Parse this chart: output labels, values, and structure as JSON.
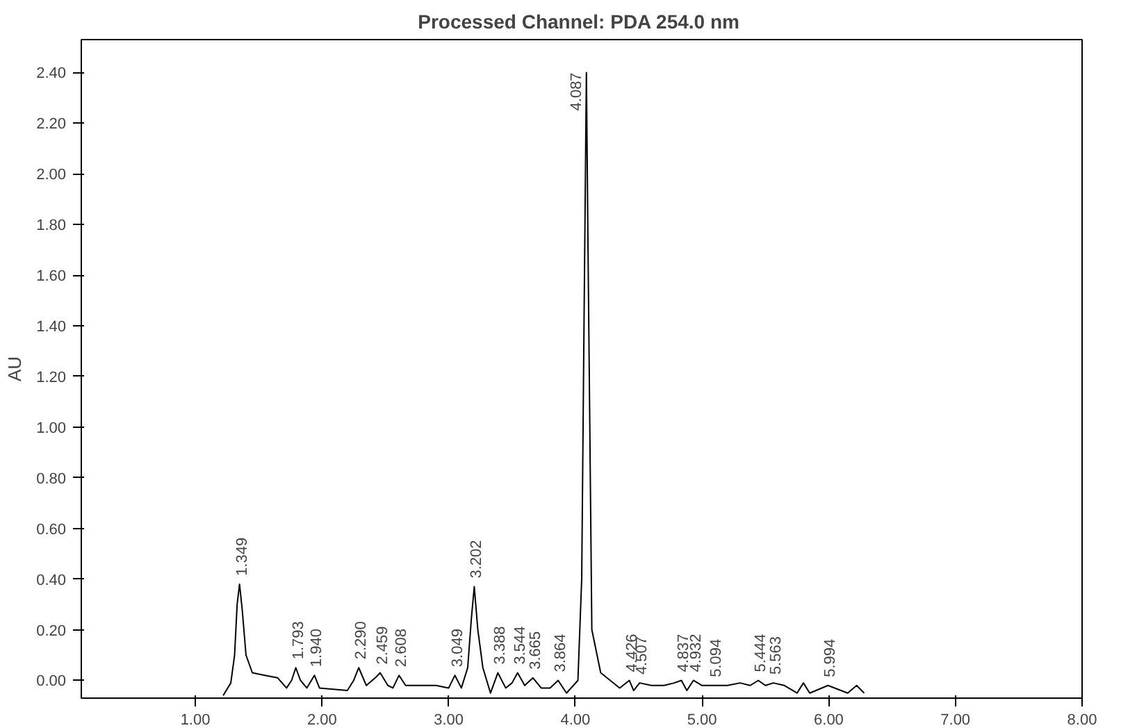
{
  "chart_data": {
    "type": "line",
    "title": "Processed Channel:  PDA 254.0 nm",
    "ylabel": "AU",
    "x": [
      1.22,
      1.28,
      1.31,
      1.33,
      1.349,
      1.37,
      1.4,
      1.45,
      1.55,
      1.65,
      1.72,
      1.76,
      1.793,
      1.83,
      1.88,
      1.94,
      1.98,
      2.2,
      2.25,
      2.29,
      2.35,
      2.42,
      2.459,
      2.52,
      2.56,
      2.608,
      2.66,
      2.9,
      3.0,
      3.049,
      3.1,
      3.15,
      3.18,
      3.202,
      3.23,
      3.27,
      3.33,
      3.388,
      3.45,
      3.5,
      3.544,
      3.6,
      3.665,
      3.73,
      3.8,
      3.864,
      3.93,
      4.02,
      4.05,
      4.07,
      4.087,
      4.1,
      4.13,
      4.2,
      4.35,
      4.426,
      4.46,
      4.507,
      4.6,
      4.7,
      4.78,
      4.837,
      4.88,
      4.932,
      5.0,
      5.094,
      5.2,
      5.3,
      5.38,
      5.444,
      5.5,
      5.563,
      5.65,
      5.75,
      5.8,
      5.85,
      5.994,
      6.15,
      6.22,
      6.28
    ],
    "series": [
      {
        "color": "#000000",
        "values": [
          -0.06,
          -0.01,
          0.1,
          0.3,
          0.38,
          0.28,
          0.1,
          0.03,
          0.02,
          0.01,
          -0.03,
          0.0,
          0.05,
          0.0,
          -0.03,
          0.02,
          -0.03,
          -0.04,
          0.0,
          0.05,
          -0.02,
          0.01,
          0.03,
          -0.02,
          -0.03,
          0.02,
          -0.02,
          -0.02,
          -0.03,
          0.02,
          -0.03,
          0.05,
          0.25,
          0.37,
          0.2,
          0.05,
          -0.05,
          0.03,
          -0.03,
          -0.01,
          0.03,
          -0.02,
          0.01,
          -0.03,
          -0.03,
          0.0,
          -0.05,
          0.0,
          0.4,
          1.5,
          2.4,
          1.7,
          0.2,
          0.03,
          -0.03,
          0.0,
          -0.04,
          -0.01,
          -0.02,
          -0.02,
          -0.01,
          0.0,
          -0.04,
          0.0,
          -0.02,
          -0.02,
          -0.02,
          -0.01,
          -0.02,
          0.0,
          -0.02,
          -0.01,
          -0.02,
          -0.05,
          -0.01,
          -0.05,
          -0.02,
          -0.05,
          -0.02,
          -0.05
        ]
      }
    ],
    "xlim": [
      0.1,
      8.0
    ],
    "ylim": [
      -0.07,
      2.53
    ],
    "xticks": [
      {
        "value": 1,
        "label": "1.00"
      },
      {
        "value": 2,
        "label": "2.00"
      },
      {
        "value": 3,
        "label": "3.00"
      },
      {
        "value": 4,
        "label": "4.00"
      },
      {
        "value": 5,
        "label": "5.00"
      },
      {
        "value": 6,
        "label": "6.00"
      },
      {
        "value": 7,
        "label": "7.00"
      },
      {
        "value": 8,
        "label": "8.00"
      }
    ],
    "yticks": [
      {
        "value": 0,
        "label": "0.00"
      },
      {
        "value": 0.2,
        "label": "0.20"
      },
      {
        "value": 0.4,
        "label": "0.40"
      },
      {
        "value": 0.6,
        "label": "0.60"
      },
      {
        "value": 0.8,
        "label": "0.80"
      },
      {
        "value": 1.0,
        "label": "1.00"
      },
      {
        "value": 1.2,
        "label": "1.20"
      },
      {
        "value": 1.4,
        "label": "1.40"
      },
      {
        "value": 1.6,
        "label": "1.60"
      },
      {
        "value": 1.8,
        "label": "1.80"
      },
      {
        "value": 2.0,
        "label": "2.00"
      },
      {
        "value": 2.2,
        "label": "2.20"
      },
      {
        "value": 2.4,
        "label": "2.40"
      }
    ],
    "grid": false,
    "marker": "none",
    "line_style": "solid",
    "annotations": [
      {
        "text": "1.349",
        "x": 1.349,
        "y": 0.38
      },
      {
        "text": "1.793",
        "x": 1.793,
        "y": 0.05
      },
      {
        "text": "1.940",
        "x": 1.94,
        "y": 0.02
      },
      {
        "text": "2.290",
        "x": 2.29,
        "y": 0.05
      },
      {
        "text": "2.459",
        "x": 2.459,
        "y": 0.03
      },
      {
        "text": "2.608",
        "x": 2.608,
        "y": 0.02
      },
      {
        "text": "3.049",
        "x": 3.049,
        "y": 0.02
      },
      {
        "text": "3.202",
        "x": 3.202,
        "y": 0.37
      },
      {
        "text": "3.388",
        "x": 3.388,
        "y": 0.03
      },
      {
        "text": "3.544",
        "x": 3.544,
        "y": 0.03
      },
      {
        "text": "3.665",
        "x": 3.665,
        "y": 0.01
      },
      {
        "text": "3.864",
        "x": 3.864,
        "y": 0.0
      },
      {
        "text": "4.087",
        "x": 4.087,
        "y": 2.4
      },
      {
        "text": "4.426",
        "x": 4.426,
        "y": 0.0
      },
      {
        "text": "4.507",
        "x": 4.507,
        "y": -0.01
      },
      {
        "text": "4.837",
        "x": 4.837,
        "y": 0.0
      },
      {
        "text": "4.932",
        "x": 4.932,
        "y": 0.0
      },
      {
        "text": "5.094",
        "x": 5.094,
        "y": -0.02
      },
      {
        "text": "5.444",
        "x": 5.444,
        "y": 0.0
      },
      {
        "text": "5.563",
        "x": 5.563,
        "y": -0.01
      },
      {
        "text": "5.994",
        "x": 5.994,
        "y": -0.02
      }
    ]
  }
}
